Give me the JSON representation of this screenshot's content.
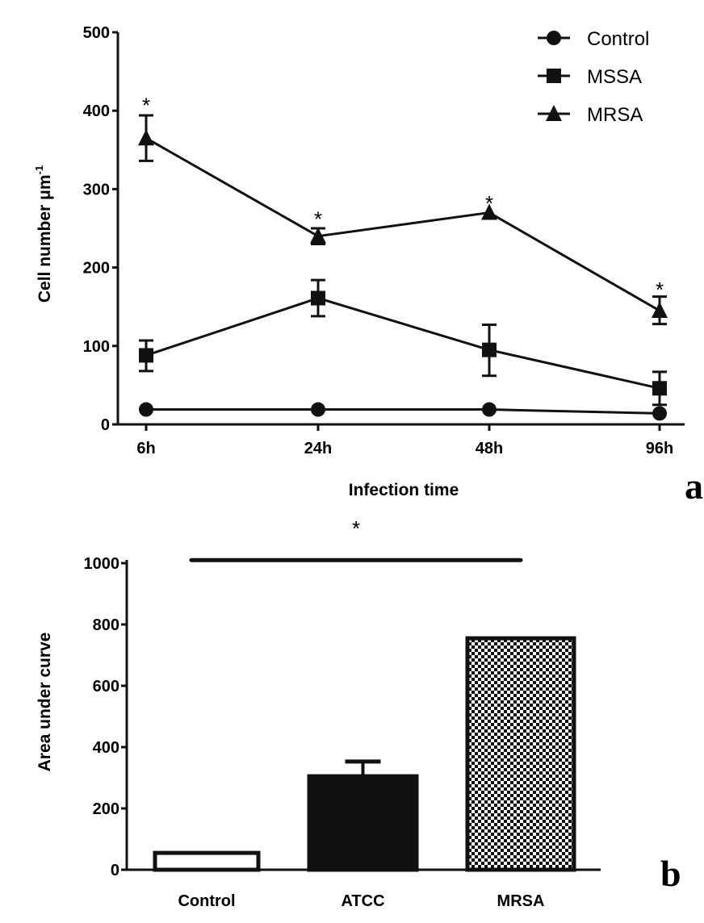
{
  "chart_data": [
    {
      "type": "line",
      "panel_label": "a",
      "xlabel": "Infection time",
      "ylabel": "Cell number μm",
      "ylabel_superscript": "-1",
      "categories": [
        "6h",
        "24h",
        "48h",
        "96h"
      ],
      "ylim": [
        0,
        500
      ],
      "yticks": [
        0,
        100,
        200,
        300,
        400,
        500
      ],
      "grid": false,
      "legend_position": "top-right",
      "series": [
        {
          "name": "Control",
          "marker": "circle",
          "values": [
            19,
            19,
            19,
            14
          ],
          "err_low": [
            19,
            19,
            19,
            14
          ],
          "err_high": [
            19,
            19,
            19,
            14
          ]
        },
        {
          "name": "MSSA",
          "marker": "square",
          "values": [
            88,
            161,
            95,
            46
          ],
          "err_low": [
            68,
            138,
            62,
            25
          ],
          "err_high": [
            107,
            184,
            127,
            67
          ]
        },
        {
          "name": "MRSA",
          "marker": "triangle",
          "values": [
            365,
            240,
            270,
            145
          ],
          "err_low": [
            336,
            230,
            270,
            128
          ],
          "err_high": [
            394,
            250,
            270,
            163
          ]
        }
      ],
      "annotations": [
        {
          "text": "*",
          "category": "6h",
          "y": 410
        },
        {
          "text": "*",
          "category": "24h",
          "y": 265
        },
        {
          "text": "*",
          "category": "48h",
          "y": 285
        },
        {
          "text": "*",
          "category": "96h",
          "y": 175
        }
      ]
    },
    {
      "type": "bar",
      "panel_label": "b",
      "xlabel": "",
      "ylabel": "Area under curve",
      "categories": [
        "Control",
        "ATCC",
        "MRSA"
      ],
      "values": [
        55,
        305,
        755
      ],
      "err_high": [
        58,
        353,
        758
      ],
      "fills": [
        "white",
        "black",
        "checkerboard"
      ],
      "ylim": [
        0,
        1000
      ],
      "yticks": [
        0,
        200,
        400,
        600,
        800,
        1000
      ],
      "grid": false,
      "significance": {
        "text": "*",
        "from": "Control",
        "to": "MRSA",
        "y": 1010
      }
    }
  ]
}
